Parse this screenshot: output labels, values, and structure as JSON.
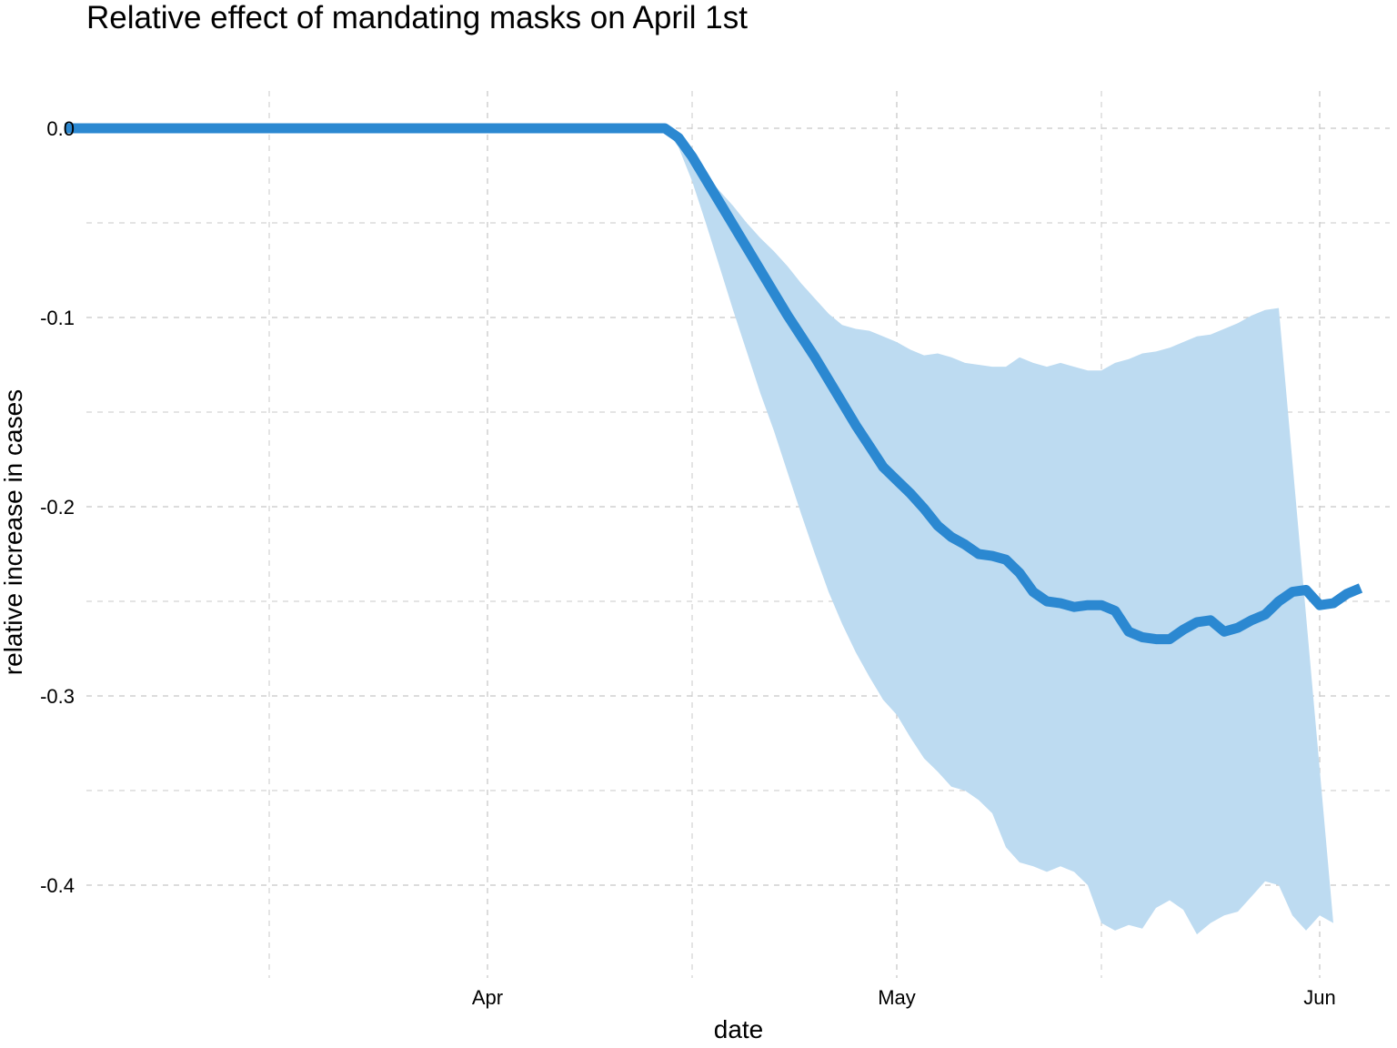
{
  "chart_data": {
    "type": "line",
    "title": "Relative effect of mandating masks on April 1st",
    "xlabel": "date",
    "ylabel": "relative increase in cases",
    "x_ticks": [
      "Apr",
      "May",
      "Jun"
    ],
    "y_ticks": [
      "0.0",
      "-0.1",
      "-0.2",
      "-0.3",
      "-0.4"
    ],
    "grid": true,
    "legend": "none",
    "line_color": "#2B88D1",
    "band_color": "#BDDBF1",
    "grid_color": "#C8C8C8",
    "xlim": [
      "2020-03-01",
      "2020-06-01"
    ],
    "ylim": [
      -0.45,
      0.02
    ],
    "series": [
      {
        "values": [
          [
            "2020-03-01",
            0.0
          ],
          [
            "2020-03-15",
            0.0
          ],
          [
            "2020-04-01",
            0.0
          ],
          [
            "2020-04-14",
            0.0
          ],
          [
            "2020-04-15",
            -0.005
          ],
          [
            "2020-04-16",
            -0.015
          ],
          [
            "2020-04-17",
            -0.027
          ],
          [
            "2020-04-18",
            -0.039
          ],
          [
            "2020-04-19",
            -0.051
          ],
          [
            "2020-04-20",
            -0.063
          ],
          [
            "2020-04-21",
            -0.075
          ],
          [
            "2020-04-22",
            -0.087
          ],
          [
            "2020-04-23",
            -0.099
          ],
          [
            "2020-04-24",
            -0.11
          ],
          [
            "2020-04-25",
            -0.121
          ],
          [
            "2020-04-26",
            -0.133
          ],
          [
            "2020-04-27",
            -0.145
          ],
          [
            "2020-04-28",
            -0.157
          ],
          [
            "2020-04-29",
            -0.168
          ],
          [
            "2020-04-30",
            -0.179
          ],
          [
            "2020-05-01",
            -0.186
          ],
          [
            "2020-05-02",
            -0.193
          ],
          [
            "2020-05-03",
            -0.201
          ],
          [
            "2020-05-04",
            -0.21
          ],
          [
            "2020-05-05",
            -0.216
          ],
          [
            "2020-05-06",
            -0.22
          ],
          [
            "2020-05-07",
            -0.225
          ],
          [
            "2020-05-08",
            -0.226
          ],
          [
            "2020-05-09",
            -0.228
          ],
          [
            "2020-05-10",
            -0.235
          ],
          [
            "2020-05-11",
            -0.245
          ],
          [
            "2020-05-12",
            -0.25
          ],
          [
            "2020-05-13",
            -0.251
          ],
          [
            "2020-05-14",
            -0.253
          ],
          [
            "2020-05-15",
            -0.252
          ],
          [
            "2020-05-16",
            -0.252
          ],
          [
            "2020-05-17",
            -0.255
          ],
          [
            "2020-05-18",
            -0.266
          ],
          [
            "2020-05-19",
            -0.269
          ],
          [
            "2020-05-20",
            -0.27
          ],
          [
            "2020-05-21",
            -0.27
          ],
          [
            "2020-05-22",
            -0.265
          ],
          [
            "2020-05-23",
            -0.261
          ],
          [
            "2020-05-24",
            -0.26
          ],
          [
            "2020-05-25",
            -0.266
          ],
          [
            "2020-05-26",
            -0.264
          ],
          [
            "2020-05-27",
            -0.26
          ],
          [
            "2020-05-28",
            -0.257
          ],
          [
            "2020-05-29",
            -0.25
          ],
          [
            "2020-05-30",
            -0.245
          ],
          [
            "2020-05-31",
            -0.244
          ],
          [
            "2020-06-01",
            -0.252
          ],
          [
            "2020-06-02",
            -0.251
          ],
          [
            "2020-06-03",
            -0.246
          ],
          [
            "2020-06-04",
            -0.243
          ]
        ],
        "lower": [
          [
            "2020-04-14",
            0.0
          ],
          [
            "2020-04-15",
            -0.01
          ],
          [
            "2020-04-16",
            -0.028
          ],
          [
            "2020-04-17",
            -0.05
          ],
          [
            "2020-04-18",
            -0.073
          ],
          [
            "2020-04-19",
            -0.096
          ],
          [
            "2020-04-20",
            -0.118
          ],
          [
            "2020-04-21",
            -0.14
          ],
          [
            "2020-04-22",
            -0.16
          ],
          [
            "2020-04-23",
            -0.182
          ],
          [
            "2020-04-24",
            -0.204
          ],
          [
            "2020-04-25",
            -0.225
          ],
          [
            "2020-04-26",
            -0.245
          ],
          [
            "2020-04-27",
            -0.262
          ],
          [
            "2020-04-28",
            -0.277
          ],
          [
            "2020-04-29",
            -0.29
          ],
          [
            "2020-04-30",
            -0.302
          ],
          [
            "2020-05-01",
            -0.31
          ],
          [
            "2020-05-02",
            -0.322
          ],
          [
            "2020-05-03",
            -0.333
          ],
          [
            "2020-05-04",
            -0.34
          ],
          [
            "2020-05-05",
            -0.348
          ],
          [
            "2020-05-06",
            -0.35
          ],
          [
            "2020-05-07",
            -0.355
          ],
          [
            "2020-05-08",
            -0.362
          ],
          [
            "2020-05-09",
            -0.38
          ],
          [
            "2020-05-10",
            -0.388
          ],
          [
            "2020-05-11",
            -0.39
          ],
          [
            "2020-05-12",
            -0.393
          ],
          [
            "2020-05-13",
            -0.39
          ],
          [
            "2020-05-14",
            -0.393
          ],
          [
            "2020-05-15",
            -0.4
          ],
          [
            "2020-05-16",
            -0.42
          ],
          [
            "2020-05-17",
            -0.424
          ],
          [
            "2020-05-18",
            -0.421
          ],
          [
            "2020-05-19",
            -0.423
          ],
          [
            "2020-05-20",
            -0.412
          ],
          [
            "2020-05-21",
            -0.408
          ],
          [
            "2020-05-22",
            -0.413
          ],
          [
            "2020-05-23",
            -0.426
          ],
          [
            "2020-05-24",
            -0.42
          ],
          [
            "2020-05-25",
            -0.416
          ],
          [
            "2020-05-26",
            -0.414
          ],
          [
            "2020-05-27",
            -0.406
          ],
          [
            "2020-05-28",
            -0.398
          ],
          [
            "2020-05-29",
            -0.4
          ],
          [
            "2020-05-30",
            -0.416
          ],
          [
            "2020-05-31",
            -0.424
          ],
          [
            "2020-06-01",
            -0.416
          ],
          [
            "2020-06-02",
            -0.42
          ]
        ],
        "upper": [
          [
            "2020-04-14",
            0.0
          ],
          [
            "2020-04-15",
            -0.008
          ],
          [
            "2020-04-16",
            -0.017
          ],
          [
            "2020-04-17",
            -0.025
          ],
          [
            "2020-04-18",
            -0.033
          ],
          [
            "2020-04-19",
            -0.041
          ],
          [
            "2020-04-20",
            -0.05
          ],
          [
            "2020-04-21",
            -0.058
          ],
          [
            "2020-04-22",
            -0.065
          ],
          [
            "2020-04-23",
            -0.073
          ],
          [
            "2020-04-24",
            -0.082
          ],
          [
            "2020-04-25",
            -0.09
          ],
          [
            "2020-04-26",
            -0.098
          ],
          [
            "2020-04-27",
            -0.104
          ],
          [
            "2020-04-28",
            -0.106
          ],
          [
            "2020-04-29",
            -0.107
          ],
          [
            "2020-04-30",
            -0.11
          ],
          [
            "2020-05-01",
            -0.113
          ],
          [
            "2020-05-02",
            -0.117
          ],
          [
            "2020-05-03",
            -0.12
          ],
          [
            "2020-05-04",
            -0.119
          ],
          [
            "2020-05-05",
            -0.121
          ],
          [
            "2020-05-06",
            -0.124
          ],
          [
            "2020-05-07",
            -0.125
          ],
          [
            "2020-05-08",
            -0.126
          ],
          [
            "2020-05-09",
            -0.126
          ],
          [
            "2020-05-10",
            -0.121
          ],
          [
            "2020-05-11",
            -0.124
          ],
          [
            "2020-05-12",
            -0.126
          ],
          [
            "2020-05-13",
            -0.124
          ],
          [
            "2020-05-14",
            -0.126
          ],
          [
            "2020-05-15",
            -0.128
          ],
          [
            "2020-05-16",
            -0.128
          ],
          [
            "2020-05-17",
            -0.124
          ],
          [
            "2020-05-18",
            -0.122
          ],
          [
            "2020-05-19",
            -0.119
          ],
          [
            "2020-05-20",
            -0.118
          ],
          [
            "2020-05-21",
            -0.116
          ],
          [
            "2020-05-22",
            -0.113
          ],
          [
            "2020-05-23",
            -0.11
          ],
          [
            "2020-05-24",
            -0.109
          ],
          [
            "2020-05-25",
            -0.106
          ],
          [
            "2020-05-26",
            -0.103
          ],
          [
            "2020-05-27",
            -0.099
          ],
          [
            "2020-05-28",
            -0.096
          ],
          [
            "2020-05-29",
            -0.095
          ]
        ]
      }
    ]
  }
}
